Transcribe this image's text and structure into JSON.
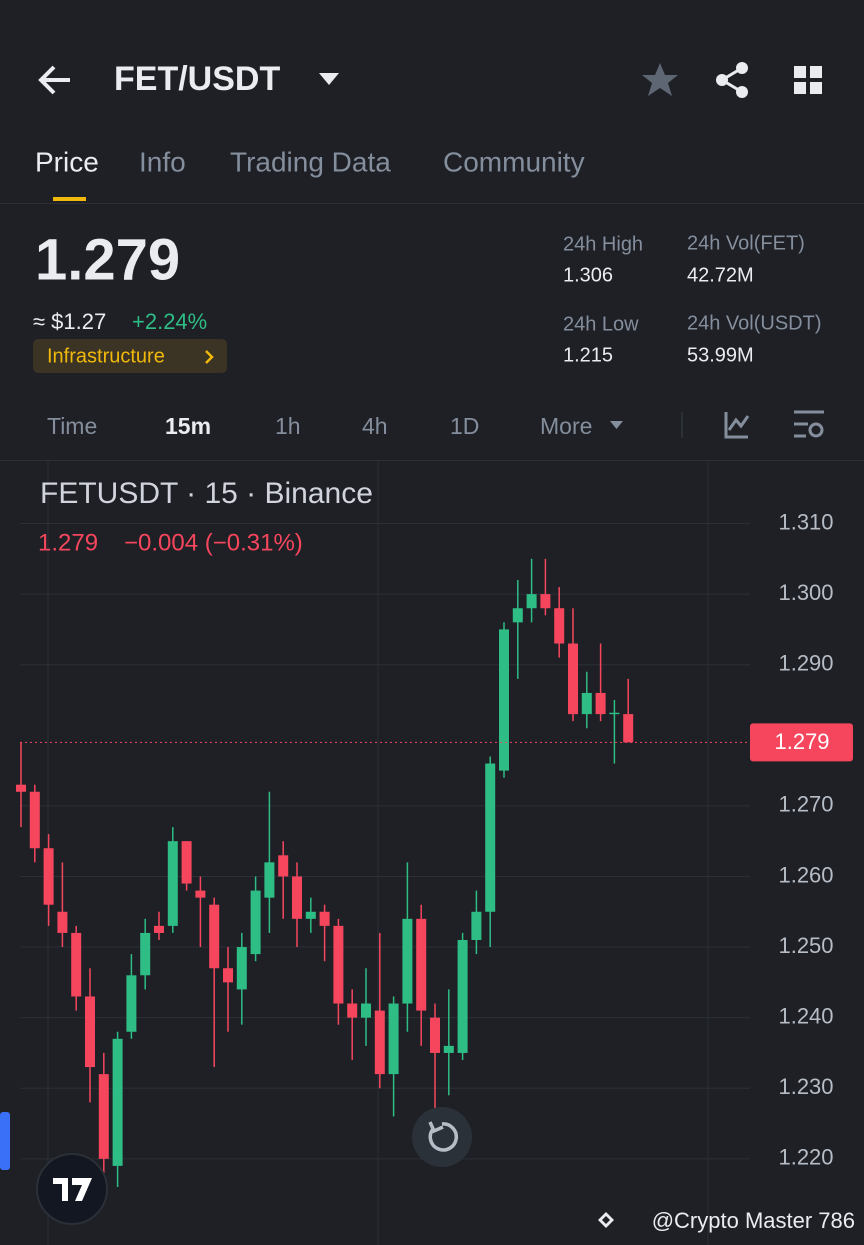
{
  "header": {
    "pair": "FET/USDT"
  },
  "tabs": [
    "Price",
    "Info",
    "Trading Data",
    "Community"
  ],
  "price": {
    "last": "1.279",
    "usd": "≈ $1.27",
    "change": "+2.24%",
    "tag": "Infrastructure"
  },
  "stats": [
    {
      "label": "24h High",
      "value": "1.306"
    },
    {
      "label": "24h Vol(FET)",
      "value": "42.72M"
    },
    {
      "label": "24h Low",
      "value": "1.215"
    },
    {
      "label": "24h Vol(USDT)",
      "value": "53.99M"
    }
  ],
  "intervals": [
    "Time",
    "15m",
    "1h",
    "4h",
    "1D",
    "More"
  ],
  "watermark": "@Crypto Master 786",
  "chart_data": {
    "type": "candlestick",
    "title": "FETUSDT · 15 · Binance",
    "last_price_text": "1.279",
    "last_change": "−0.004 (−0.31%)",
    "up_color": "#2ebd85",
    "down_color": "#f6465d",
    "open": [
      1.273,
      1.272,
      1.264,
      1.255,
      1.252,
      1.243,
      1.232,
      1.219,
      1.238,
      1.246,
      1.253,
      1.253,
      1.265,
      1.258,
      1.256,
      1.247,
      1.244,
      1.249,
      1.257,
      1.263,
      1.26,
      1.254,
      1.255,
      1.253,
      1.242,
      1.24,
      1.241,
      1.232,
      1.242,
      1.254,
      1.24,
      1.235,
      1.235,
      1.251,
      1.255,
      1.275,
      1.296,
      1.298,
      1.3,
      1.298,
      1.293,
      1.283,
      1.286,
      1.283,
      1.283
    ],
    "high": [
      1.279,
      1.273,
      1.266,
      1.262,
      1.253,
      1.247,
      1.235,
      1.238,
      1.249,
      1.254,
      1.255,
      1.267,
      1.265,
      1.26,
      1.257,
      1.25,
      1.252,
      1.26,
      1.272,
      1.265,
      1.262,
      1.257,
      1.256,
      1.254,
      1.244,
      1.247,
      1.252,
      1.243,
      1.262,
      1.256,
      1.242,
      1.244,
      1.252,
      1.258,
      1.277,
      1.296,
      1.302,
      1.305,
      1.305,
      1.301,
      1.298,
      1.289,
      1.293,
      1.285,
      1.288
    ],
    "low": [
      1.267,
      1.262,
      1.253,
      1.25,
      1.241,
      1.228,
      1.218,
      1.216,
      1.237,
      1.244,
      1.251,
      1.252,
      1.258,
      1.25,
      1.233,
      1.238,
      1.239,
      1.248,
      1.252,
      1.254,
      1.25,
      1.252,
      1.248,
      1.239,
      1.234,
      1.236,
      1.23,
      1.226,
      1.238,
      1.236,
      1.227,
      1.229,
      1.234,
      1.249,
      1.25,
      1.274,
      1.288,
      1.296,
      1.297,
      1.291,
      1.282,
      1.281,
      1.282,
      1.276,
      1.279
    ],
    "close": [
      1.272,
      1.264,
      1.256,
      1.252,
      1.243,
      1.233,
      1.22,
      1.237,
      1.246,
      1.252,
      1.252,
      1.265,
      1.259,
      1.257,
      1.247,
      1.245,
      1.25,
      1.258,
      1.262,
      1.26,
      1.254,
      1.255,
      1.253,
      1.242,
      1.24,
      1.242,
      1.232,
      1.242,
      1.254,
      1.241,
      1.235,
      1.236,
      1.251,
      1.255,
      1.276,
      1.295,
      1.298,
      1.3,
      1.298,
      1.293,
      1.283,
      1.286,
      1.283,
      1.2832,
      1.279
    ],
    "last": 1.279,
    "ylim": [
      1.2085,
      1.319
    ],
    "yticks": [
      {
        "value": 1.31,
        "label": "1.310"
      },
      {
        "value": 1.3,
        "label": "1.300"
      },
      {
        "value": 1.29,
        "label": "1.290"
      },
      {
        "value": 1.27,
        "label": "1.270"
      },
      {
        "value": 1.26,
        "label": "1.260"
      },
      {
        "value": 1.25,
        "label": "1.250"
      },
      {
        "value": 1.24,
        "label": "1.240"
      },
      {
        "value": 1.23,
        "label": "1.230"
      },
      {
        "value": 1.22,
        "label": "1.220"
      }
    ],
    "grid": true
  }
}
